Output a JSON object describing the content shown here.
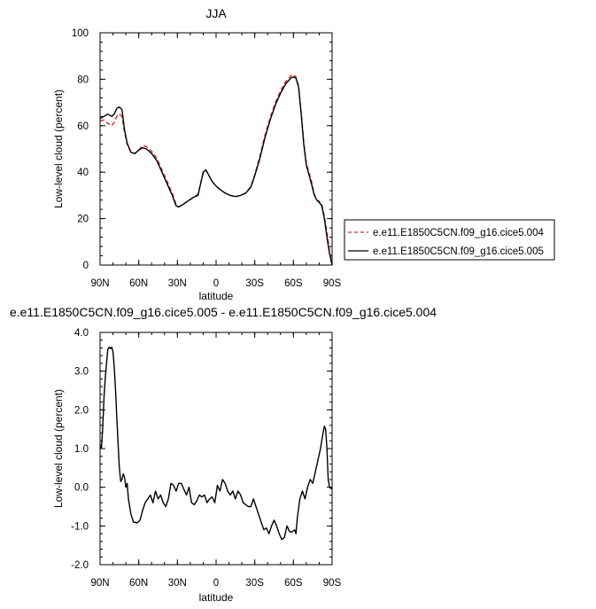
{
  "chart_data": [
    {
      "type": "line",
      "title": "JJA",
      "xlabel": "latitude",
      "ylabel": "Low-level cloud (percent)",
      "xlim": [
        90,
        -90
      ],
      "ylim": [
        0,
        100
      ],
      "xticks": [
        90,
        60,
        30,
        0,
        -30,
        -60,
        -90
      ],
      "xtick_labels": [
        "90N",
        "60N",
        "30N",
        "0",
        "30S",
        "60S",
        "90S"
      ],
      "yticks": [
        0,
        20,
        40,
        60,
        80,
        100
      ],
      "ytick_labels": [
        "0",
        "20",
        "40",
        "60",
        "80",
        "100"
      ],
      "grid": false,
      "legend_position": "right",
      "series": [
        {
          "name": "e.e11.E1850C5CN.f09_g16.cice5.004",
          "color": "#d62728",
          "dash": "dashed",
          "points": [
            [
              90,
              62
            ],
            [
              87,
              62.5
            ],
            [
              84,
              61
            ],
            [
              81,
              60
            ],
            [
              79,
              61.5
            ],
            [
              77,
              64
            ],
            [
              75,
              65
            ],
            [
              73,
              64
            ],
            [
              71,
              57
            ],
            [
              69,
              52
            ],
            [
              66,
              48.5
            ],
            [
              63,
              48
            ],
            [
              60,
              49.5
            ],
            [
              57,
              51.5
            ],
            [
              54,
              51
            ],
            [
              50,
              49
            ],
            [
              46,
              46
            ],
            [
              42,
              41
            ],
            [
              38,
              36
            ],
            [
              34,
              31
            ],
            [
              31,
              26
            ],
            [
              29,
              25
            ],
            [
              26,
              26
            ],
            [
              22,
              27.5
            ],
            [
              18,
              29
            ],
            [
              14,
              30.5
            ],
            [
              12,
              35
            ],
            [
              10,
              39.5
            ],
            [
              8,
              41
            ],
            [
              6,
              39
            ],
            [
              3,
              36
            ],
            [
              0,
              34
            ],
            [
              -3,
              32.5
            ],
            [
              -7,
              31
            ],
            [
              -11,
              30
            ],
            [
              -15,
              29.5
            ],
            [
              -19,
              30
            ],
            [
              -23,
              31
            ],
            [
              -27,
              34
            ],
            [
              -30,
              39
            ],
            [
              -34,
              47
            ],
            [
              -38,
              56
            ],
            [
              -42,
              63.5
            ],
            [
              -46,
              70
            ],
            [
              -50,
              75
            ],
            [
              -54,
              79
            ],
            [
              -58,
              81.5
            ],
            [
              -60,
              82
            ],
            [
              -62,
              81
            ],
            [
              -64,
              77
            ],
            [
              -66,
              66
            ],
            [
              -68,
              53
            ],
            [
              -70,
              44
            ],
            [
              -72,
              40
            ],
            [
              -74,
              36
            ],
            [
              -76,
              31
            ],
            [
              -78,
              28
            ],
            [
              -80,
              27.5
            ],
            [
              -82,
              26
            ],
            [
              -84,
              21
            ],
            [
              -86,
              14
            ],
            [
              -88,
              6
            ],
            [
              -90,
              0
            ]
          ]
        },
        {
          "name": "e.e11.E1850C5CN.f09_g16.cice5.005",
          "color": "#000000",
          "dash": "solid",
          "points": [
            [
              90,
              63
            ],
            [
              87,
              64
            ],
            [
              84,
              65
            ],
            [
              81,
              64
            ],
            [
              79,
              65
            ],
            [
              77,
              67.5
            ],
            [
              75,
              68
            ],
            [
              73,
              67
            ],
            [
              71,
              58
            ],
            [
              69,
              52.5
            ],
            [
              66,
              48.5
            ],
            [
              63,
              48
            ],
            [
              60,
              49.5
            ],
            [
              57,
              50.5
            ],
            [
              54,
              50
            ],
            [
              50,
              48
            ],
            [
              46,
              45
            ],
            [
              42,
              40
            ],
            [
              38,
              35
            ],
            [
              34,
              30
            ],
            [
              31,
              25.5
            ],
            [
              29,
              25
            ],
            [
              26,
              26
            ],
            [
              22,
              27.5
            ],
            [
              18,
              29
            ],
            [
              14,
              30
            ],
            [
              12,
              35
            ],
            [
              10,
              40
            ],
            [
              8,
              41
            ],
            [
              6,
              39
            ],
            [
              3,
              36
            ],
            [
              0,
              34
            ],
            [
              -3,
              32.5
            ],
            [
              -7,
              31
            ],
            [
              -11,
              30
            ],
            [
              -15,
              29.5
            ],
            [
              -19,
              30
            ],
            [
              -23,
              31
            ],
            [
              -27,
              33.5
            ],
            [
              -30,
              38.5
            ],
            [
              -34,
              46
            ],
            [
              -38,
              55
            ],
            [
              -42,
              62.5
            ],
            [
              -46,
              69
            ],
            [
              -50,
              74
            ],
            [
              -54,
              78
            ],
            [
              -58,
              80.5
            ],
            [
              -60,
              81
            ],
            [
              -62,
              80.5
            ],
            [
              -64,
              76.5
            ],
            [
              -66,
              65
            ],
            [
              -68,
              52
            ],
            [
              -70,
              43
            ],
            [
              -72,
              39
            ],
            [
              -74,
              35
            ],
            [
              -76,
              30.5
            ],
            [
              -78,
              28
            ],
            [
              -80,
              27
            ],
            [
              -82,
              25.5
            ],
            [
              -84,
              20
            ],
            [
              -86,
              12
            ],
            [
              -88,
              5
            ],
            [
              -90,
              0
            ]
          ]
        }
      ]
    },
    {
      "type": "line",
      "title": "e.e11.E1850C5CN.f09_g16.cice5.005 - e.e11.E1850C5CN.f09_g16.cice5.004",
      "xlabel": "latitude",
      "ylabel": "Low-level cloud (percent)",
      "xlim": [
        90,
        -90
      ],
      "ylim": [
        -2,
        4
      ],
      "xticks": [
        90,
        60,
        30,
        0,
        -30,
        -60,
        -90
      ],
      "xtick_labels": [
        "90N",
        "60N",
        "30N",
        "0",
        "30S",
        "60S",
        "90S"
      ],
      "yticks": [
        -2,
        -1,
        0,
        1,
        2,
        3,
        4
      ],
      "ytick_labels": [
        "-2.0",
        "-1.0",
        "0.0",
        "1.0",
        "2.0",
        "3.0",
        "4.0"
      ],
      "grid": false,
      "series": [
        {
          "name": "",
          "color": "#000000",
          "dash": "solid",
          "points": [
            [
              90,
              1.1
            ],
            [
              89,
              1.0
            ],
            [
              88,
              1.5
            ],
            [
              87,
              2.3
            ],
            [
              86,
              2.8
            ],
            [
              85,
              3.2
            ],
            [
              84,
              3.55
            ],
            [
              83,
              3.62
            ],
            [
              82,
              3.58
            ],
            [
              81,
              3.62
            ],
            [
              80,
              3.5
            ],
            [
              79,
              3.1
            ],
            [
              78,
              2.5
            ],
            [
              77,
              1.8
            ],
            [
              76,
              1.1
            ],
            [
              75,
              0.5
            ],
            [
              74,
              0.15
            ],
            [
              73,
              0.2
            ],
            [
              72,
              0.35
            ],
            [
              71,
              0.25
            ],
            [
              70,
              0.0
            ],
            [
              69,
              0.1
            ],
            [
              68,
              -0.3
            ],
            [
              66,
              -0.7
            ],
            [
              64,
              -0.9
            ],
            [
              61,
              -0.92
            ],
            [
              59,
              -0.85
            ],
            [
              57,
              -0.6
            ],
            [
              55,
              -0.4
            ],
            [
              53,
              -0.3
            ],
            [
              51,
              -0.2
            ],
            [
              49,
              -0.4
            ],
            [
              47,
              -0.1
            ],
            [
              45,
              -0.3
            ],
            [
              43,
              -0.2
            ],
            [
              41,
              -0.4
            ],
            [
              39,
              -0.5
            ],
            [
              37,
              -0.3
            ],
            [
              35,
              0.1
            ],
            [
              33,
              0.05
            ],
            [
              31,
              -0.1
            ],
            [
              29,
              0.1
            ],
            [
              27,
              0.1
            ],
            [
              25,
              -0.05
            ],
            [
              23,
              -0.2
            ],
            [
              21,
              0.0
            ],
            [
              19,
              -0.4
            ],
            [
              17,
              -0.45
            ],
            [
              15,
              -0.35
            ],
            [
              13,
              -0.2
            ],
            [
              11,
              -0.25
            ],
            [
              9,
              -0.2
            ],
            [
              7,
              -0.4
            ],
            [
              5,
              -0.3
            ],
            [
              3,
              -0.25
            ],
            [
              1,
              -0.4
            ],
            [
              -1,
              0.05
            ],
            [
              -3,
              -0.1
            ],
            [
              -5,
              0.2
            ],
            [
              -7,
              0.1
            ],
            [
              -9,
              -0.1
            ],
            [
              -11,
              -0.2
            ],
            [
              -13,
              -0.1
            ],
            [
              -15,
              -0.3
            ],
            [
              -17,
              -0.1
            ],
            [
              -19,
              -0.2
            ],
            [
              -21,
              -0.4
            ],
            [
              -23,
              -0.45
            ],
            [
              -25,
              -0.5
            ],
            [
              -27,
              -0.5
            ],
            [
              -29,
              -0.3
            ],
            [
              -31,
              -0.5
            ],
            [
              -33,
              -0.7
            ],
            [
              -35,
              -0.9
            ],
            [
              -37,
              -1.1
            ],
            [
              -39,
              -1.05
            ],
            [
              -41,
              -1.2
            ],
            [
              -43,
              -1.0
            ],
            [
              -45,
              -0.85
            ],
            [
              -47,
              -1.0
            ],
            [
              -49,
              -1.2
            ],
            [
              -51,
              -1.35
            ],
            [
              -53,
              -1.3
            ],
            [
              -55,
              -1.0
            ],
            [
              -57,
              -1.15
            ],
            [
              -59,
              -1.15
            ],
            [
              -61,
              -1.1
            ],
            [
              -62,
              -1.2
            ],
            [
              -63,
              -0.8
            ],
            [
              -65,
              -0.3
            ],
            [
              -67,
              -0.1
            ],
            [
              -69,
              -0.3
            ],
            [
              -71,
              0.0
            ],
            [
              -73,
              0.2
            ],
            [
              -75,
              0.1
            ],
            [
              -77,
              0.4
            ],
            [
              -79,
              0.7
            ],
            [
              -81,
              1.0
            ],
            [
              -83,
              1.4
            ],
            [
              -84,
              1.58
            ],
            [
              -85,
              1.5
            ],
            [
              -86,
              1.0
            ],
            [
              -87,
              0.2
            ],
            [
              -88,
              0.0
            ],
            [
              -90,
              -0.05
            ]
          ]
        }
      ]
    }
  ]
}
